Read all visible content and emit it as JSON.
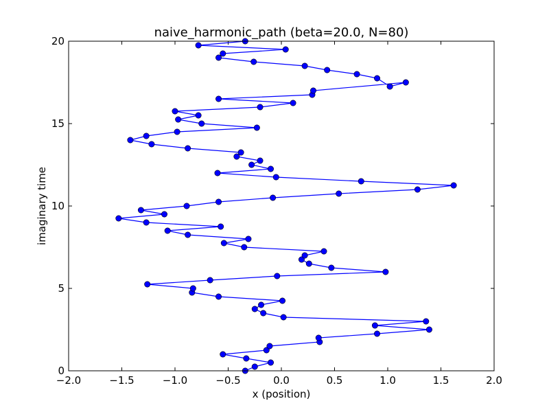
{
  "chart_data": {
    "type": "line",
    "title": "naive_harmonic_path (beta=20.0, N=80)",
    "xlabel": "x (position)",
    "ylabel": "imaginary time",
    "xlim": [
      -2.0,
      2.0
    ],
    "ylim": [
      0,
      20
    ],
    "x_ticks": [
      -2.0,
      -1.5,
      -1.0,
      -0.5,
      0.0,
      0.5,
      1.0,
      1.5,
      2.0
    ],
    "x_tick_labels": [
      "−2.0",
      "−1.5",
      "−1.0",
      "−0.5",
      "0.0",
      "0.5",
      "1.0",
      "1.5",
      "2.0"
    ],
    "y_ticks": [
      0,
      5,
      10,
      15,
      20
    ],
    "y_tick_labels": [
      "0",
      "5",
      "10",
      "15",
      "20"
    ],
    "grid": false,
    "line_color": "#0000ff",
    "marker_color": "#0000ff",
    "series": [
      {
        "x": [
          -0.34,
          -0.25,
          -0.1,
          -0.33,
          -0.55,
          -0.14,
          -0.11,
          0.36,
          0.35,
          0.9,
          1.39,
          0.88,
          1.36,
          0.02,
          -0.17,
          -0.25,
          -0.19,
          0.01,
          -0.59,
          -0.84,
          -0.83,
          -1.26,
          -0.67,
          -0.04,
          0.98,
          0.47,
          0.26,
          0.19,
          0.22,
          0.4,
          -0.35,
          -0.54,
          -0.31,
          -0.88,
          -1.07,
          -0.57,
          -1.27,
          -1.53,
          -1.1,
          -1.32,
          -0.89,
          -0.59,
          -0.08,
          0.54,
          1.28,
          1.62,
          0.75,
          -0.05,
          -0.6,
          -0.1,
          -0.28,
          -0.2,
          -0.42,
          -0.38,
          -0.88,
          -1.22,
          -1.42,
          -1.27,
          -0.98,
          -0.23,
          -0.75,
          -0.97,
          -0.78,
          -1.0,
          -0.2,
          0.11,
          -0.59,
          0.29,
          0.3,
          1.17,
          1.02,
          0.9,
          0.71,
          0.43,
          0.22,
          -0.26,
          -0.59,
          -0.55,
          0.04,
          -0.78,
          -0.34
        ],
        "y": [
          0.0,
          0.25,
          0.5,
          0.75,
          1.0,
          1.25,
          1.5,
          1.75,
          2.0,
          2.25,
          2.5,
          2.75,
          3.0,
          3.25,
          3.5,
          3.75,
          4.0,
          4.25,
          4.5,
          4.75,
          5.0,
          5.25,
          5.5,
          5.75,
          6.0,
          6.25,
          6.5,
          6.75,
          7.0,
          7.25,
          7.5,
          7.75,
          8.0,
          8.25,
          8.5,
          8.75,
          9.0,
          9.25,
          9.5,
          9.75,
          10.0,
          10.25,
          10.5,
          10.75,
          11.0,
          11.25,
          11.5,
          11.75,
          12.0,
          12.25,
          12.5,
          12.75,
          13.0,
          13.25,
          13.5,
          13.75,
          14.0,
          14.25,
          14.5,
          14.75,
          15.0,
          15.25,
          15.5,
          15.75,
          16.0,
          16.25,
          16.5,
          16.75,
          17.0,
          17.5,
          17.25,
          17.75,
          18.0,
          18.25,
          18.5,
          18.75,
          19.0,
          19.25,
          19.5,
          19.75,
          20.0
        ]
      }
    ]
  }
}
